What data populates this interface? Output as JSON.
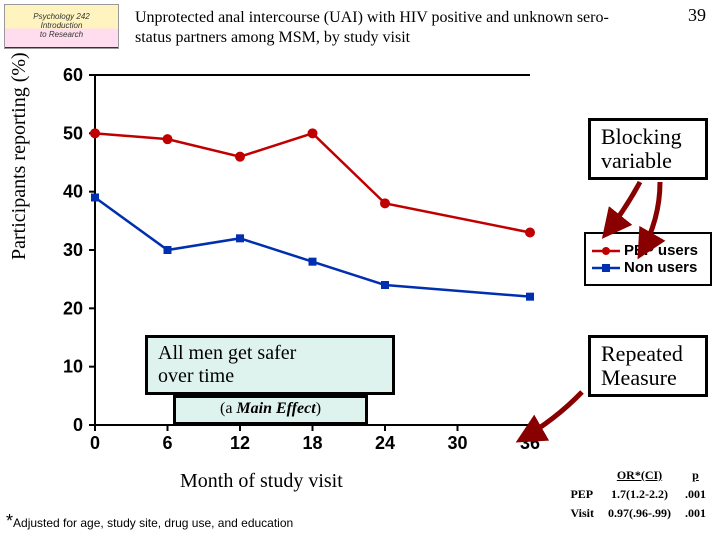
{
  "page_number": "39",
  "logo": {
    "line1": "Psychology 242",
    "line2": "Introduction",
    "line3": "to Research"
  },
  "title": "Unprotected anal intercourse (UAI) with HIV positive and unknown sero-status partners among MSM, by study visit",
  "y_axis_label": "Participants reporting (%)",
  "x_axis_label": "Month of study visit",
  "chart": {
    "type": "line",
    "xlim": [
      0,
      36
    ],
    "ylim": [
      0,
      60
    ],
    "x_ticks": [
      0,
      6,
      12,
      18,
      24,
      30,
      36
    ],
    "y_ticks": [
      0,
      10,
      20,
      30,
      40,
      50,
      60
    ],
    "background_color": "#ffffff",
    "axis_color": "#000000",
    "tick_font_size": 18,
    "tick_font_weight": "bold",
    "series": [
      {
        "name": "PEP users",
        "color": "#c00000",
        "marker": "circle",
        "marker_size": 7,
        "line_width": 2.5,
        "x": [
          0,
          6,
          12,
          18,
          24,
          36
        ],
        "y": [
          50,
          49,
          46,
          50,
          38,
          33
        ]
      },
      {
        "name": "Non users",
        "color": "#0030b0",
        "marker": "square",
        "marker_size": 8,
        "line_width": 2.5,
        "x": [
          0,
          6,
          12,
          18,
          24,
          36
        ],
        "y": [
          39,
          30,
          32,
          28,
          24,
          22
        ]
      }
    ]
  },
  "legend": {
    "items": [
      {
        "label": "PEP users",
        "color": "#c00000",
        "marker": "circle"
      },
      {
        "label": "Non users",
        "color": "#0030b0",
        "marker": "square"
      }
    ]
  },
  "callouts": {
    "blocking": "Blocking variable",
    "repeated": "Repeated Measure",
    "safer_line1": "All men get safer",
    "safer_line2": "over time",
    "main_effect": "(a Main Effect)"
  },
  "arrows": {
    "color": "#800000",
    "width": 5
  },
  "stats": {
    "header": [
      "OR*(CI)",
      "p"
    ],
    "rows": [
      {
        "label": "PEP",
        "or": "1.7(1.2-2.2)",
        "p": ".001"
      },
      {
        "label": "Visit",
        "or": "0.97(.96-.99)",
        "p": ".001"
      }
    ]
  },
  "footnote": "Adjusted for age, study site, drug use, and education"
}
